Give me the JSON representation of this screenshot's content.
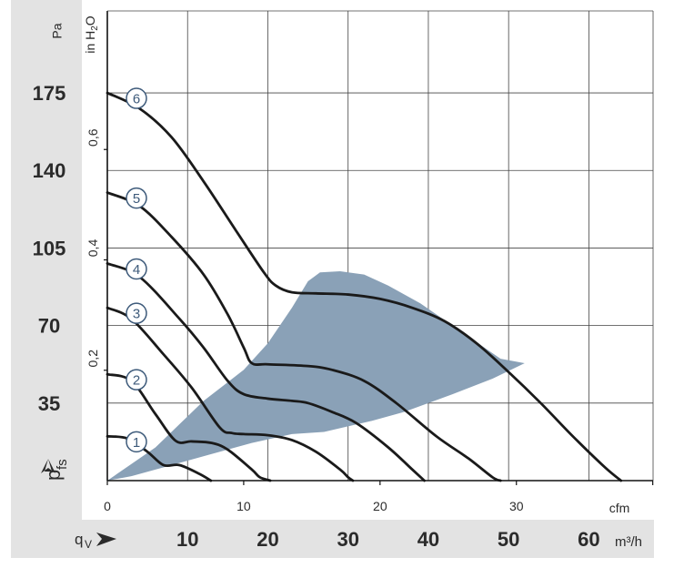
{
  "chart_data": {
    "type": "line",
    "y_axis_pa": {
      "unit": "Pa",
      "ticks": [
        35,
        70,
        105,
        140,
        175
      ],
      "label": "p",
      "label_sub": "fs",
      "ylim": [
        0,
        212
      ]
    },
    "y_axis_inh2o": {
      "unit_main": "in H",
      "unit_sub": "2",
      "unit_end": "O",
      "ticks": [
        "0,2",
        "0,4",
        "0,6"
      ],
      "tick_values": [
        0.2,
        0.4,
        0.6
      ]
    },
    "x_axis_cfm": {
      "unit": "cfm",
      "ticks": [
        0,
        10,
        20,
        30
      ],
      "xlim": [
        0,
        40
      ]
    },
    "x_axis_m3h": {
      "unit": "m³/h",
      "label": "q",
      "label_sub": "V",
      "ticks": [
        10,
        20,
        30,
        40,
        50,
        60
      ],
      "xlim": [
        0,
        68
      ]
    },
    "series": [
      {
        "name": "1",
        "points": [
          [
            0,
            20
          ],
          [
            2.5,
            19
          ],
          [
            5,
            13
          ],
          [
            7,
            7
          ],
          [
            9,
            7
          ],
          [
            11.5,
            3
          ],
          [
            12.9,
            0
          ]
        ]
      },
      {
        "name": "2",
        "points": [
          [
            0,
            48
          ],
          [
            3,
            45
          ],
          [
            6,
            30
          ],
          [
            8.5,
            18
          ],
          [
            10.5,
            17.7
          ],
          [
            13,
            17
          ],
          [
            15,
            14
          ],
          [
            18,
            5
          ],
          [
            19,
            1.5
          ],
          [
            20.3,
            0
          ]
        ]
      },
      {
        "name": "3",
        "points": [
          [
            0,
            78
          ],
          [
            3,
            73
          ],
          [
            7,
            57
          ],
          [
            10.5,
            42
          ],
          [
            14,
            24
          ],
          [
            15.5,
            21.5
          ],
          [
            17,
            21
          ],
          [
            20,
            20.5
          ],
          [
            23,
            18.3
          ],
          [
            26,
            13
          ],
          [
            29,
            5
          ],
          [
            30,
            1.5
          ],
          [
            30.6,
            0
          ]
        ]
      },
      {
        "name": "4",
        "points": [
          [
            0,
            98
          ],
          [
            4,
            92
          ],
          [
            9,
            73
          ],
          [
            12,
            60
          ],
          [
            15,
            45
          ],
          [
            17,
            39
          ],
          [
            20,
            37
          ],
          [
            23,
            36
          ],
          [
            25,
            35
          ],
          [
            28,
            31
          ],
          [
            31,
            26
          ],
          [
            35,
            15
          ],
          [
            38,
            5
          ],
          [
            39.5,
            0
          ]
        ]
      },
      {
        "name": "5",
        "points": [
          [
            0,
            130
          ],
          [
            4,
            124
          ],
          [
            8,
            110
          ],
          [
            12,
            93
          ],
          [
            15,
            75
          ],
          [
            17,
            60
          ],
          [
            18,
            53
          ],
          [
            20,
            52.5
          ],
          [
            25,
            51.7
          ],
          [
            28,
            50
          ],
          [
            32,
            45
          ],
          [
            36,
            35
          ],
          [
            41,
            20
          ],
          [
            45,
            10
          ],
          [
            48,
            1.5
          ],
          [
            49,
            0
          ]
        ]
      },
      {
        "name": "6",
        "points": [
          [
            0,
            175
          ],
          [
            4,
            168
          ],
          [
            8,
            155
          ],
          [
            12,
            135
          ],
          [
            16,
            113
          ],
          [
            19.5,
            94
          ],
          [
            21,
            88
          ],
          [
            23,
            85
          ],
          [
            26,
            84.5
          ],
          [
            30,
            84
          ],
          [
            34,
            82
          ],
          [
            38,
            78
          ],
          [
            42,
            72
          ],
          [
            46,
            62
          ],
          [
            50,
            49
          ],
          [
            54,
            35
          ],
          [
            58,
            20
          ],
          [
            62,
            6
          ],
          [
            64,
            0
          ]
        ]
      }
    ],
    "operating_region": {
      "points": [
        [
          0,
          0
        ],
        [
          6,
          15
        ],
        [
          12,
          36
        ],
        [
          17,
          50
        ],
        [
          20,
          62
        ],
        [
          23,
          78
        ],
        [
          25,
          90
        ],
        [
          26.5,
          94
        ],
        [
          29,
          94.5
        ],
        [
          32,
          93
        ],
        [
          35,
          88
        ],
        [
          39,
          80
        ],
        [
          43,
          70
        ],
        [
          47,
          60
        ],
        [
          49,
          55
        ],
        [
          52,
          53
        ],
        [
          48,
          46
        ],
        [
          43,
          39
        ],
        [
          37,
          31
        ],
        [
          33,
          27
        ],
        [
          27,
          22
        ],
        [
          23,
          21
        ],
        [
          18,
          17
        ],
        [
          13,
          12
        ],
        [
          8,
          7
        ],
        [
          3,
          2
        ],
        [
          0,
          0
        ]
      ],
      "color": "#8aa1b7"
    },
    "line_color": "#1a1a1a",
    "grid": true
  }
}
